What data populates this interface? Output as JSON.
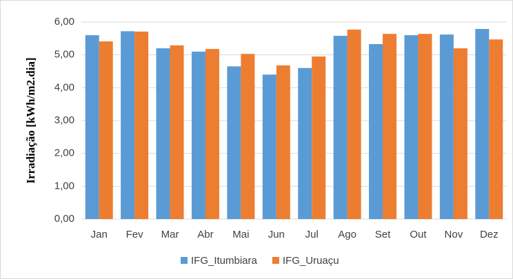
{
  "chart_data": {
    "type": "bar",
    "y_label": "Irradiação [kWh/m2.dia]",
    "categories": [
      "Jan",
      "Fev",
      "Mar",
      "Abr",
      "Mai",
      "Jun",
      "Jul",
      "Ago",
      "Set",
      "Out",
      "Nov",
      "Dez"
    ],
    "series": [
      {
        "name": "IFG_Itumbiara",
        "color": "#5b9bd5",
        "values": [
          5.6,
          5.72,
          5.2,
          5.1,
          4.65,
          4.4,
          4.6,
          5.58,
          5.33,
          5.6,
          5.62,
          5.79
        ]
      },
      {
        "name": "IFG_Uruaçu",
        "color": "#ed7d31",
        "values": [
          5.41,
          5.71,
          5.29,
          5.18,
          5.03,
          4.68,
          4.95,
          5.77,
          5.64,
          5.64,
          5.2,
          5.47
        ]
      }
    ],
    "ylim": [
      0,
      6
    ],
    "yticks": [
      {
        "value": 0,
        "label": "0,00"
      },
      {
        "value": 1,
        "label": "1,00"
      },
      {
        "value": 2,
        "label": "2,00"
      },
      {
        "value": 3,
        "label": "3,00"
      },
      {
        "value": 4,
        "label": "4,00"
      },
      {
        "value": 5,
        "label": "5,00"
      },
      {
        "value": 6,
        "label": "6,00"
      }
    ],
    "grid": true,
    "legend": "bottom"
  }
}
